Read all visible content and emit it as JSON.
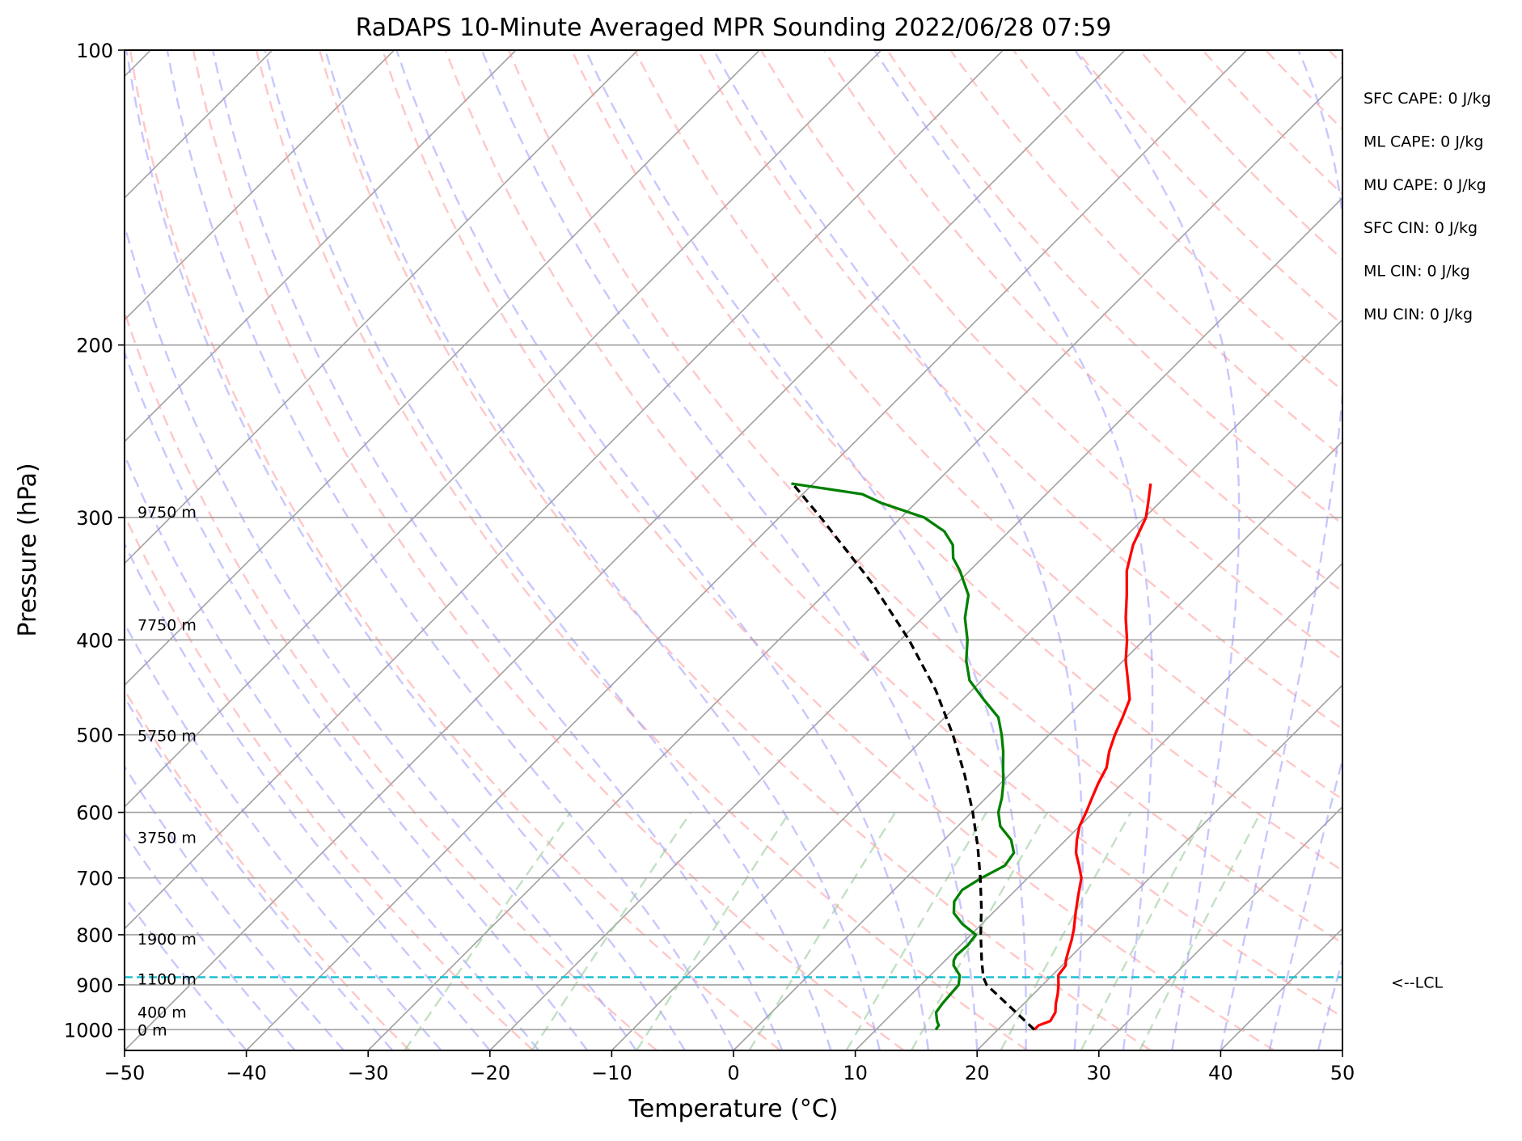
{
  "chart_data": {
    "type": "line",
    "title": "RaDAPS 10-Minute Averaged MPR Sounding 2022/06/28 07:59",
    "xlabel": "Temperature (°C)",
    "ylabel": "Pressure (hPa)",
    "xlim": [
      -50,
      50
    ],
    "ylim": [
      1050,
      100
    ],
    "y_scale": "log",
    "x_ticks": [
      -50,
      -40,
      -30,
      -20,
      -10,
      0,
      10,
      20,
      30,
      40,
      50
    ],
    "x_tick_labels": [
      "−50",
      "−40",
      "−30",
      "−20",
      "−10",
      "0",
      "10",
      "20",
      "30",
      "40",
      "50"
    ],
    "y_ticks": [
      100,
      200,
      300,
      400,
      500,
      600,
      700,
      800,
      900,
      1000
    ],
    "y_tick_labels": [
      "100",
      "200",
      "300",
      "400",
      "500",
      "600",
      "700",
      "800",
      "900",
      "1000"
    ],
    "grid": true,
    "colors": {
      "temperature": "#ff0000",
      "dewpoint": "#008000",
      "parcel": "#000000",
      "lcl": "#17becf",
      "dry_adiabat": "#ff9999",
      "moist_adiabat": "#9999ff",
      "mixing_ratio": "#99cc99",
      "isotherm": "#a0a0a0"
    },
    "series": [
      {
        "name": "",
        "role": "temperature",
        "points": [
          [
            1000,
            23.0
          ],
          [
            990,
            23.0
          ],
          [
            980,
            23.6
          ],
          [
            960,
            23.3
          ],
          [
            940,
            22.6
          ],
          [
            920,
            22.0
          ],
          [
            900,
            21.3
          ],
          [
            880,
            20.5
          ],
          [
            860,
            20.3
          ],
          [
            850,
            19.9
          ],
          [
            830,
            19.3
          ],
          [
            810,
            18.7
          ],
          [
            790,
            18.0
          ],
          [
            760,
            16.8
          ],
          [
            730,
            15.6
          ],
          [
            700,
            14.4
          ],
          [
            680,
            13.2
          ],
          [
            660,
            11.9
          ],
          [
            640,
            10.9
          ],
          [
            620,
            10.0
          ],
          [
            600,
            9.4
          ],
          [
            580,
            8.7
          ],
          [
            560,
            8.0
          ],
          [
            540,
            7.4
          ],
          [
            520,
            6.3
          ],
          [
            500,
            5.4
          ],
          [
            480,
            4.6
          ],
          [
            460,
            3.7
          ],
          [
            440,
            2.0
          ],
          [
            420,
            0.2
          ],
          [
            400,
            -1.4
          ],
          [
            380,
            -3.3
          ],
          [
            360,
            -5.1
          ],
          [
            340,
            -7.1
          ],
          [
            320,
            -8.7
          ],
          [
            300,
            -9.9
          ],
          [
            290,
            -10.9
          ],
          [
            277,
            -12.3
          ]
        ]
      },
      {
        "name": "",
        "role": "dewpoint",
        "points": [
          [
            1000,
            14.9
          ],
          [
            990,
            14.8
          ],
          [
            980,
            14.3
          ],
          [
            960,
            13.5
          ],
          [
            940,
            13.3
          ],
          [
            920,
            13.2
          ],
          [
            900,
            13.1
          ],
          [
            880,
            12.4
          ],
          [
            860,
            11.1
          ],
          [
            850,
            10.7
          ],
          [
            840,
            10.5
          ],
          [
            820,
            10.6
          ],
          [
            800,
            10.4
          ],
          [
            780,
            8.4
          ],
          [
            760,
            6.8
          ],
          [
            740,
            5.9
          ],
          [
            720,
            5.6
          ],
          [
            700,
            6.2
          ],
          [
            680,
            7.1
          ],
          [
            660,
            6.8
          ],
          [
            640,
            5.5
          ],
          [
            620,
            3.5
          ],
          [
            600,
            2.2
          ],
          [
            580,
            1.3
          ],
          [
            560,
            0.2
          ],
          [
            540,
            -1.1
          ],
          [
            520,
            -2.4
          ],
          [
            500,
            -3.9
          ],
          [
            480,
            -5.6
          ],
          [
            460,
            -8.3
          ],
          [
            440,
            -11.0
          ],
          [
            420,
            -12.9
          ],
          [
            400,
            -14.5
          ],
          [
            380,
            -16.5
          ],
          [
            360,
            -18.1
          ],
          [
            340,
            -20.8
          ],
          [
            330,
            -22.4
          ],
          [
            320,
            -23.5
          ],
          [
            310,
            -25.3
          ],
          [
            300,
            -28.1
          ],
          [
            290,
            -32.8
          ],
          [
            284,
            -35.1
          ],
          [
            277,
            -41.8
          ]
        ]
      },
      {
        "name": "",
        "role": "parcel",
        "points": [
          [
            1000,
            23.0
          ],
          [
            950,
            19.3
          ],
          [
            900,
            15.4
          ],
          [
            884,
            14.5
          ],
          [
            850,
            13.0
          ],
          [
            800,
            10.8
          ],
          [
            750,
            8.6
          ],
          [
            700,
            6.1
          ],
          [
            650,
            3.3
          ],
          [
            600,
            0.1
          ],
          [
            550,
            -3.6
          ],
          [
            500,
            -7.9
          ],
          [
            450,
            -13.0
          ],
          [
            400,
            -19.3
          ],
          [
            350,
            -27.0
          ],
          [
            300,
            -36.6
          ],
          [
            277,
            -41.7
          ]
        ]
      }
    ],
    "lcl": {
      "pressure": 884,
      "label": "<--LCL"
    },
    "height_labels": [
      {
        "pressure": 1000,
        "text": "0 m"
      },
      {
        "pressure": 959,
        "text": "400 m"
      },
      {
        "pressure": 887,
        "text": "1100 m"
      },
      {
        "pressure": 808,
        "text": "1900 m"
      },
      {
        "pressure": 636,
        "text": "3750 m"
      },
      {
        "pressure": 501,
        "text": "5750 m"
      },
      {
        "pressure": 386,
        "text": "7750 m"
      },
      {
        "pressure": 296,
        "text": "9750 m"
      }
    ],
    "indices": [
      {
        "label": "SFC CAPE: 0 J/kg"
      },
      {
        "label": "ML CAPE: 0 J/kg"
      },
      {
        "label": "MU CAPE: 0 J/kg"
      },
      {
        "label": "SFC CIN: 0 J/kg"
      },
      {
        "label": "ML CIN: 0 J/kg"
      },
      {
        "label": "MU CIN: 0 J/kg"
      }
    ]
  }
}
